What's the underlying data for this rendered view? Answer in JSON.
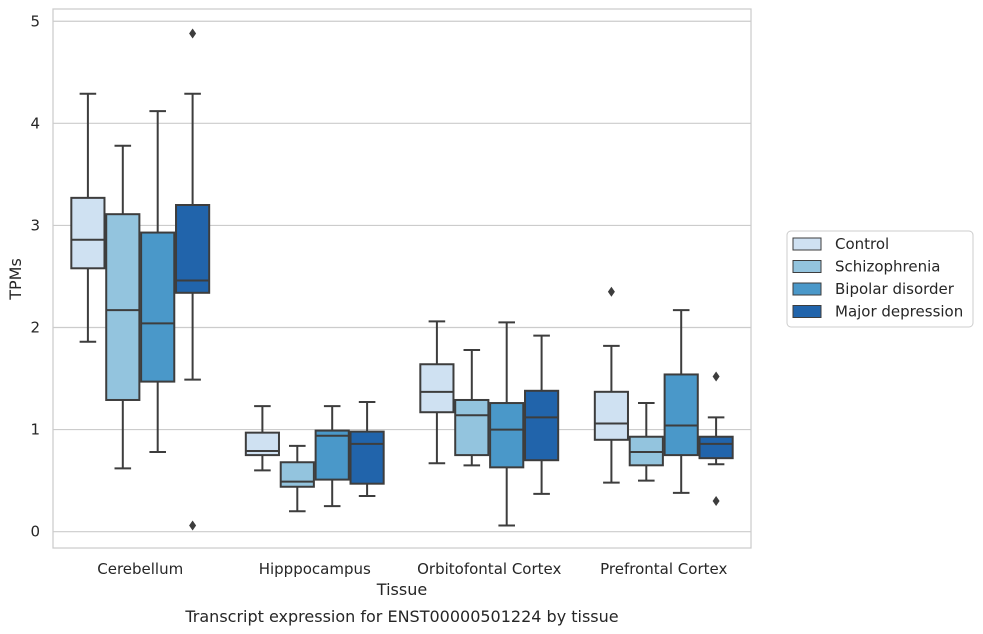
{
  "chart_data": {
    "type": "box",
    "caption": "Transcript expression for ENST00000501224 by tissue",
    "xlabel": "Tissue",
    "ylabel": "TPMs",
    "ylim": [
      -0.16,
      5.12
    ],
    "yticks": [
      0,
      1,
      2,
      3,
      4,
      5
    ],
    "grid": "horizontal",
    "legend_placement": "right",
    "categories": [
      "Cerebellum",
      "Hipppocampus",
      "Orbitofontal Cortex",
      "Prefrontal Cortex"
    ],
    "series": [
      {
        "name": "Control",
        "color": "#cfe1f2",
        "boxes": [
          {
            "whisker_low": 1.86,
            "q1": 2.58,
            "median": 2.86,
            "q3": 3.27,
            "whisker_high": 4.29,
            "outliers": []
          },
          {
            "whisker_low": 0.6,
            "q1": 0.75,
            "median": 0.79,
            "q3": 0.97,
            "whisker_high": 1.23,
            "outliers": []
          },
          {
            "whisker_low": 0.67,
            "q1": 1.17,
            "median": 1.37,
            "q3": 1.64,
            "whisker_high": 2.06,
            "outliers": []
          },
          {
            "whisker_low": 0.48,
            "q1": 0.9,
            "median": 1.06,
            "q3": 1.37,
            "whisker_high": 1.82,
            "outliers": [
              2.35
            ]
          }
        ]
      },
      {
        "name": "Schizophrenia",
        "color": "#93c4de",
        "boxes": [
          {
            "whisker_low": 0.62,
            "q1": 1.29,
            "median": 2.17,
            "q3": 3.11,
            "whisker_high": 3.78,
            "outliers": []
          },
          {
            "whisker_low": 0.2,
            "q1": 0.44,
            "median": 0.49,
            "q3": 0.68,
            "whisker_high": 0.84,
            "outliers": []
          },
          {
            "whisker_low": 0.65,
            "q1": 0.75,
            "median": 1.14,
            "q3": 1.29,
            "whisker_high": 1.78,
            "outliers": []
          },
          {
            "whisker_low": 0.5,
            "q1": 0.65,
            "median": 0.78,
            "q3": 0.93,
            "whisker_high": 1.26,
            "outliers": []
          }
        ]
      },
      {
        "name": "Bipolar disorder",
        "color": "#4a98c9",
        "boxes": [
          {
            "whisker_low": 0.78,
            "q1": 1.47,
            "median": 2.04,
            "q3": 2.93,
            "whisker_high": 4.12,
            "outliers": []
          },
          {
            "whisker_low": 0.25,
            "q1": 0.51,
            "median": 0.94,
            "q3": 0.99,
            "whisker_high": 1.23,
            "outliers": []
          },
          {
            "whisker_low": 0.06,
            "q1": 0.63,
            "median": 1.0,
            "q3": 1.26,
            "whisker_high": 2.05,
            "outliers": []
          },
          {
            "whisker_low": 0.38,
            "q1": 0.75,
            "median": 1.04,
            "q3": 1.54,
            "whisker_high": 2.17,
            "outliers": []
          }
        ]
      },
      {
        "name": "Major depression",
        "color": "#2164ab",
        "boxes": [
          {
            "whisker_low": 1.49,
            "q1": 2.34,
            "median": 2.46,
            "q3": 3.2,
            "whisker_high": 4.29,
            "outliers": [
              4.88,
              0.06
            ]
          },
          {
            "whisker_low": 0.35,
            "q1": 0.47,
            "median": 0.86,
            "q3": 0.98,
            "whisker_high": 1.27,
            "outliers": []
          },
          {
            "whisker_low": 0.37,
            "q1": 0.7,
            "median": 1.12,
            "q3": 1.38,
            "whisker_high": 1.92,
            "outliers": []
          },
          {
            "whisker_low": 0.66,
            "q1": 0.72,
            "median": 0.86,
            "q3": 0.93,
            "whisker_high": 1.12,
            "outliers": [
              1.52,
              0.3
            ]
          }
        ]
      }
    ]
  }
}
